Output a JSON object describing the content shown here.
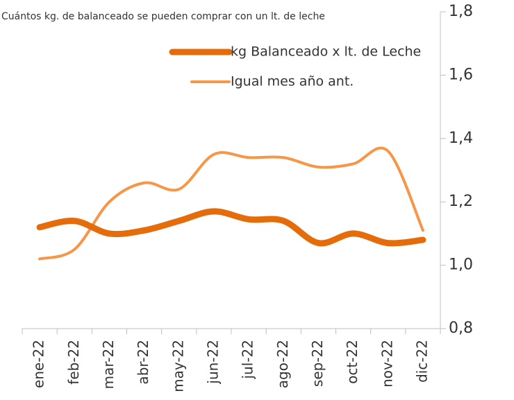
{
  "chart_data": {
    "type": "line",
    "title": "Cuántos kg. de balanceado se pueden comprar con un lt. de leche",
    "categories": [
      "ene-22",
      "feb-22",
      "mar-22",
      "abr-22",
      "may-22",
      "jun-22",
      "jul-22",
      "ago-22",
      "sep-22",
      "oct-22",
      "nov-22",
      "dic-22"
    ],
    "series": [
      {
        "name": "kg Balanceado x lt. de Leche",
        "color": "#e46c0a",
        "width": 9,
        "values": [
          1.12,
          1.14,
          1.1,
          1.11,
          1.14,
          1.17,
          1.145,
          1.14,
          1.07,
          1.1,
          1.07,
          1.08
        ]
      },
      {
        "name": "Igual mes año ant.",
        "color": "#f79646",
        "width": 4,
        "values": [
          1.02,
          1.05,
          1.2,
          1.26,
          1.24,
          1.35,
          1.34,
          1.34,
          1.31,
          1.32,
          1.36,
          1.11
        ]
      }
    ],
    "ylim": [
      0.8,
      1.8
    ],
    "yticks": [
      {
        "value": 0.8,
        "label": "0,8"
      },
      {
        "value": 1.0,
        "label": "1,0"
      },
      {
        "value": 1.2,
        "label": "1,2"
      },
      {
        "value": 1.4,
        "label": "1,4"
      },
      {
        "value": 1.6,
        "label": "1,6"
      },
      {
        "value": 1.8,
        "label": "1,8"
      }
    ]
  }
}
